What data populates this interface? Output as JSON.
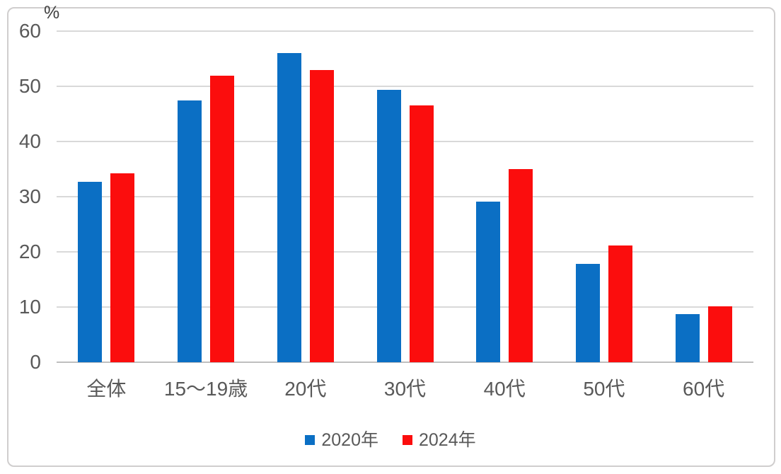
{
  "chart_data": {
    "type": "bar",
    "title": "",
    "categories": [
      "全体",
      "15〜19歳",
      "20代",
      "30代",
      "40代",
      "50代",
      "60代"
    ],
    "series": [
      {
        "name": "2020年",
        "color": "#0B6FC4",
        "values": [
          32.7,
          47.5,
          56.0,
          49.3,
          29.1,
          17.8,
          8.7
        ]
      },
      {
        "name": "2024年",
        "color": "#FB0D0D",
        "values": [
          34.2,
          51.9,
          52.9,
          46.6,
          35.0,
          21.2,
          10.1
        ]
      }
    ],
    "xlabel": "",
    "ylabel": "%",
    "ylim": [
      0,
      60
    ],
    "ytick_step": 10,
    "yticks": [
      0,
      10,
      20,
      30,
      40,
      50,
      60
    ],
    "grid": true,
    "legend_position": "bottom",
    "colors": {
      "gridline": "#D9D9D9",
      "axis_line": "#BFBFBF",
      "tick_label": "#595959",
      "frame_border": "#D0CECE",
      "background": "#FFFFFF"
    }
  }
}
